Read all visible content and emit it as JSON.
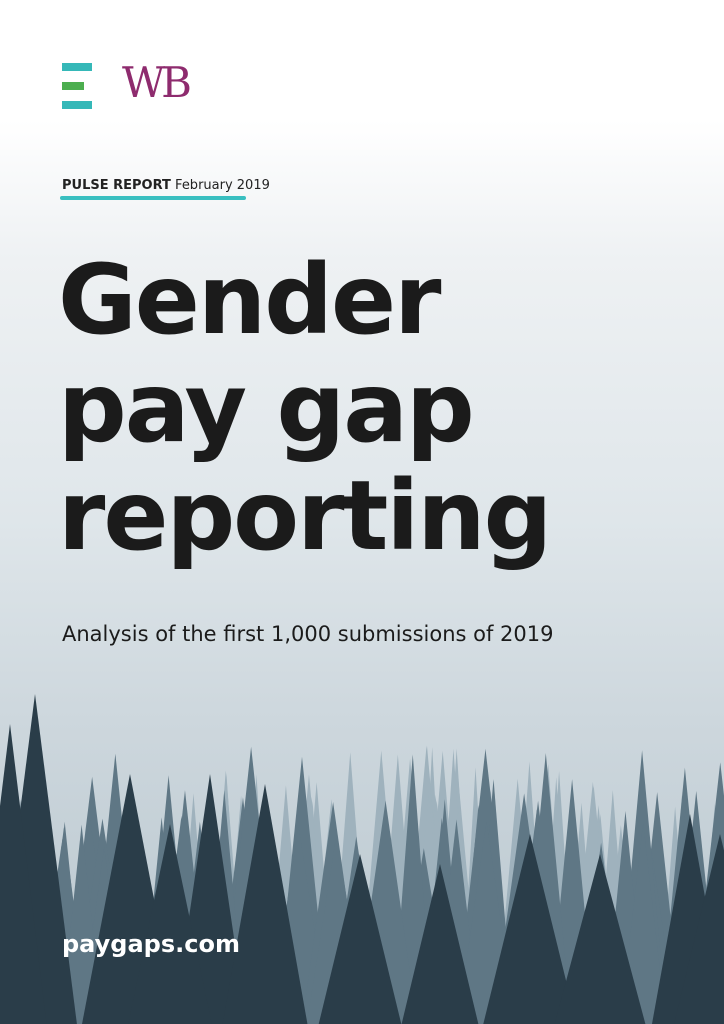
{
  "logo": {
    "text": "WB"
  },
  "header": {
    "label": "PULSE REPORT",
    "date": "February 2019"
  },
  "title": {
    "lines": [
      "Gender",
      "pay gap",
      "reporting"
    ]
  },
  "subtitle": "Analysis of the first 1,000 submissions of 2019",
  "footer": {
    "url": "paygaps.com"
  }
}
